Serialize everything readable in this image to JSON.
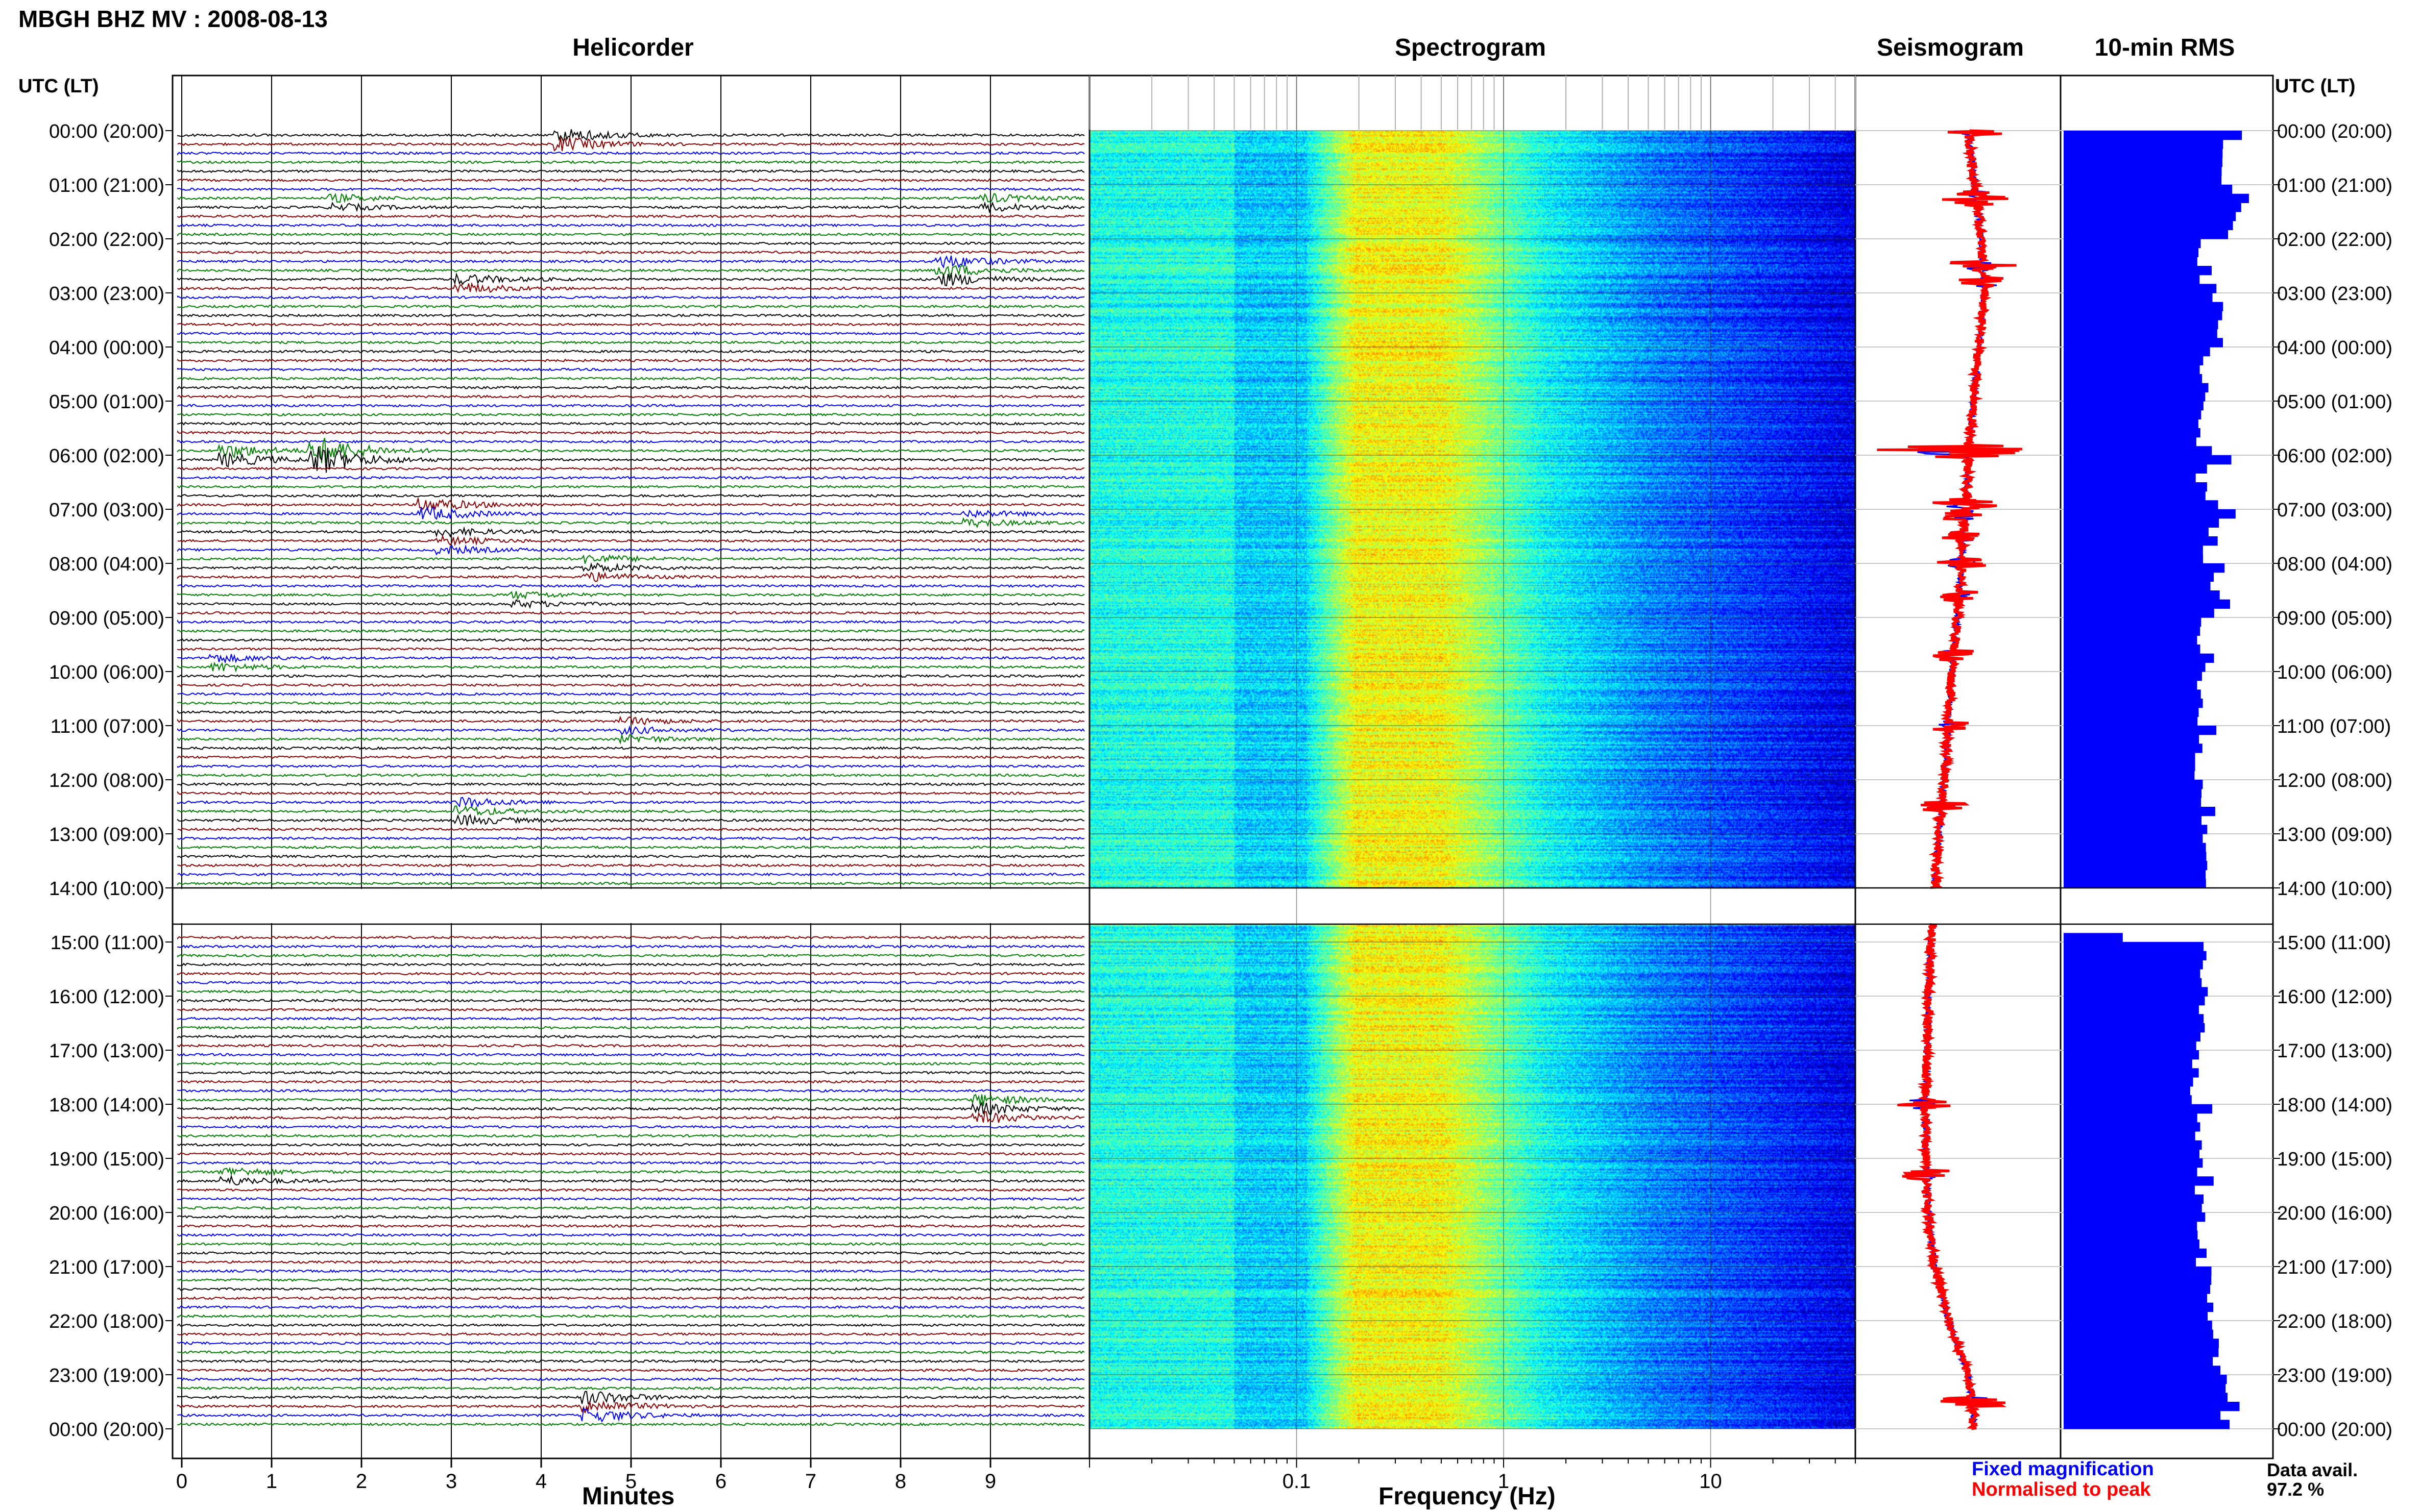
{
  "header": {
    "title": "MBGH BHZ MV : 2008-08-13"
  },
  "panels": {
    "helicorder": "Helicorder",
    "spectrogram": "Spectrogram",
    "seismogram": "Seismogram",
    "rms": "10-min RMS"
  },
  "axes": {
    "utc_left": "UTC (LT)",
    "utc_right": "UTC (LT)",
    "helicorder_xlabel": "Minutes",
    "spectrogram_xlabel": "Frequency (Hz)"
  },
  "legend": {
    "fixed": "Fixed magnification",
    "normalised": "Normalised to peak"
  },
  "availability": {
    "label": "Data avail.",
    "value": "97.2 %"
  },
  "colors": {
    "blue": "#0000ff",
    "red": "#ff0000",
    "green": "#008000",
    "darkred": "#8b0000",
    "black": "#000000"
  },
  "chart_data": [
    {
      "type": "line",
      "panel": "Helicorder",
      "xlabel": "Minutes",
      "x_ticks": [
        "0",
        "1",
        "2",
        "3",
        "4",
        "5",
        "6",
        "7",
        "8",
        "9"
      ],
      "xlim": [
        0,
        10
      ],
      "y_ticks_left": [
        "00:00 (20:00)",
        "01:00 (21:00)",
        "02:00 (22:00)",
        "03:00 (23:00)",
        "04:00 (00:00)",
        "05:00 (01:00)",
        "06:00 (02:00)",
        "07:00 (03:00)",
        "08:00 (04:00)",
        "09:00 (05:00)",
        "10:00 (06:00)",
        "11:00 (07:00)",
        "12:00 (08:00)",
        "13:00 (09:00)",
        "14:00 (10:00)",
        "15:00 (11:00)",
        "16:00 (12:00)",
        "17:00 (13:00)",
        "18:00 (14:00)",
        "19:00 (15:00)",
        "20:00 (16:00)",
        "21:00 (17:00)",
        "22:00 (18:00)",
        "23:00 (19:00)",
        "00:00 (20:00)"
      ],
      "trace_colors": [
        "#000000",
        "#8b0000",
        "#0000ff",
        "#008000"
      ],
      "gap_hours": [
        14,
        14.67
      ],
      "events": [
        {
          "hour": 0.0,
          "minute": 4.3,
          "amp": 3.0
        },
        {
          "hour": 1.2,
          "minute": 1.8,
          "amp": 1.6
        },
        {
          "hour": 1.3,
          "minute": 9.0,
          "amp": 1.8
        },
        {
          "hour": 2.5,
          "minute": 8.5,
          "amp": 3.0
        },
        {
          "hour": 2.8,
          "minute": 3.2,
          "amp": 2.2
        },
        {
          "hour": 5.9,
          "minute": 1.6,
          "amp": 6.0
        },
        {
          "hour": 5.95,
          "minute": 0.6,
          "amp": 3.0
        },
        {
          "hour": 6.9,
          "minute": 2.8,
          "amp": 3.0
        },
        {
          "hour": 7.1,
          "minute": 8.8,
          "amp": 1.6
        },
        {
          "hour": 7.5,
          "minute": 3.0,
          "amp": 1.8
        },
        {
          "hour": 8.0,
          "minute": 4.6,
          "amp": 2.0
        },
        {
          "hour": 8.6,
          "minute": 3.8,
          "amp": 1.5
        },
        {
          "hour": 9.7,
          "minute": 0.5,
          "amp": 1.8
        },
        {
          "hour": 11.0,
          "minute": 5.0,
          "amp": 1.6
        },
        {
          "hour": 12.5,
          "minute": 3.2,
          "amp": 2.2
        },
        {
          "hour": 18.0,
          "minute": 8.9,
          "amp": 2.6
        },
        {
          "hour": 19.3,
          "minute": 0.6,
          "amp": 2.0
        },
        {
          "hour": 23.5,
          "minute": 4.6,
          "amp": 3.0
        }
      ]
    },
    {
      "type": "heatmap",
      "panel": "Spectrogram",
      "xlabel": "Frequency (Hz)",
      "x_scale": "log",
      "x_ticks": [
        "0.1",
        "1",
        "10"
      ],
      "xlim": [
        0.01,
        50
      ],
      "colormap": "jet",
      "gap_hours": [
        14,
        14.67
      ]
    },
    {
      "type": "line",
      "panel": "Seismogram",
      "series": [
        {
          "name": "Fixed magnification",
          "color": "#0000ff"
        },
        {
          "name": "Normalised to peak",
          "color": "#ff0000"
        }
      ],
      "offset_by_hour": [
        0.0,
        0.05,
        0.1,
        0.12,
        0.08,
        0.04,
        0.0,
        -0.02,
        -0.05,
        -0.08,
        -0.12,
        -0.15,
        -0.18,
        -0.22,
        -0.25,
        -0.28,
        -0.3,
        -0.31,
        -0.32,
        -0.32,
        -0.3,
        -0.25,
        -0.15,
        0.0,
        0.05
      ],
      "gap_hours": [
        14,
        14.67
      ]
    },
    {
      "type": "bar",
      "panel": "10-min RMS",
      "orientation": "horizontal",
      "color": "#0000ff",
      "interval_minutes": 10,
      "gap_hours": [
        14,
        14.67
      ],
      "values_by_hour": [
        0.8,
        0.85,
        0.7,
        0.78,
        0.72,
        0.7,
        0.7,
        0.72,
        0.74,
        0.7,
        0.68,
        0.68,
        0.7,
        0.7,
        0.0,
        0.72,
        0.7,
        0.66,
        0.68,
        0.68,
        0.7,
        0.74,
        0.78,
        0.82,
        0.82
      ]
    }
  ]
}
